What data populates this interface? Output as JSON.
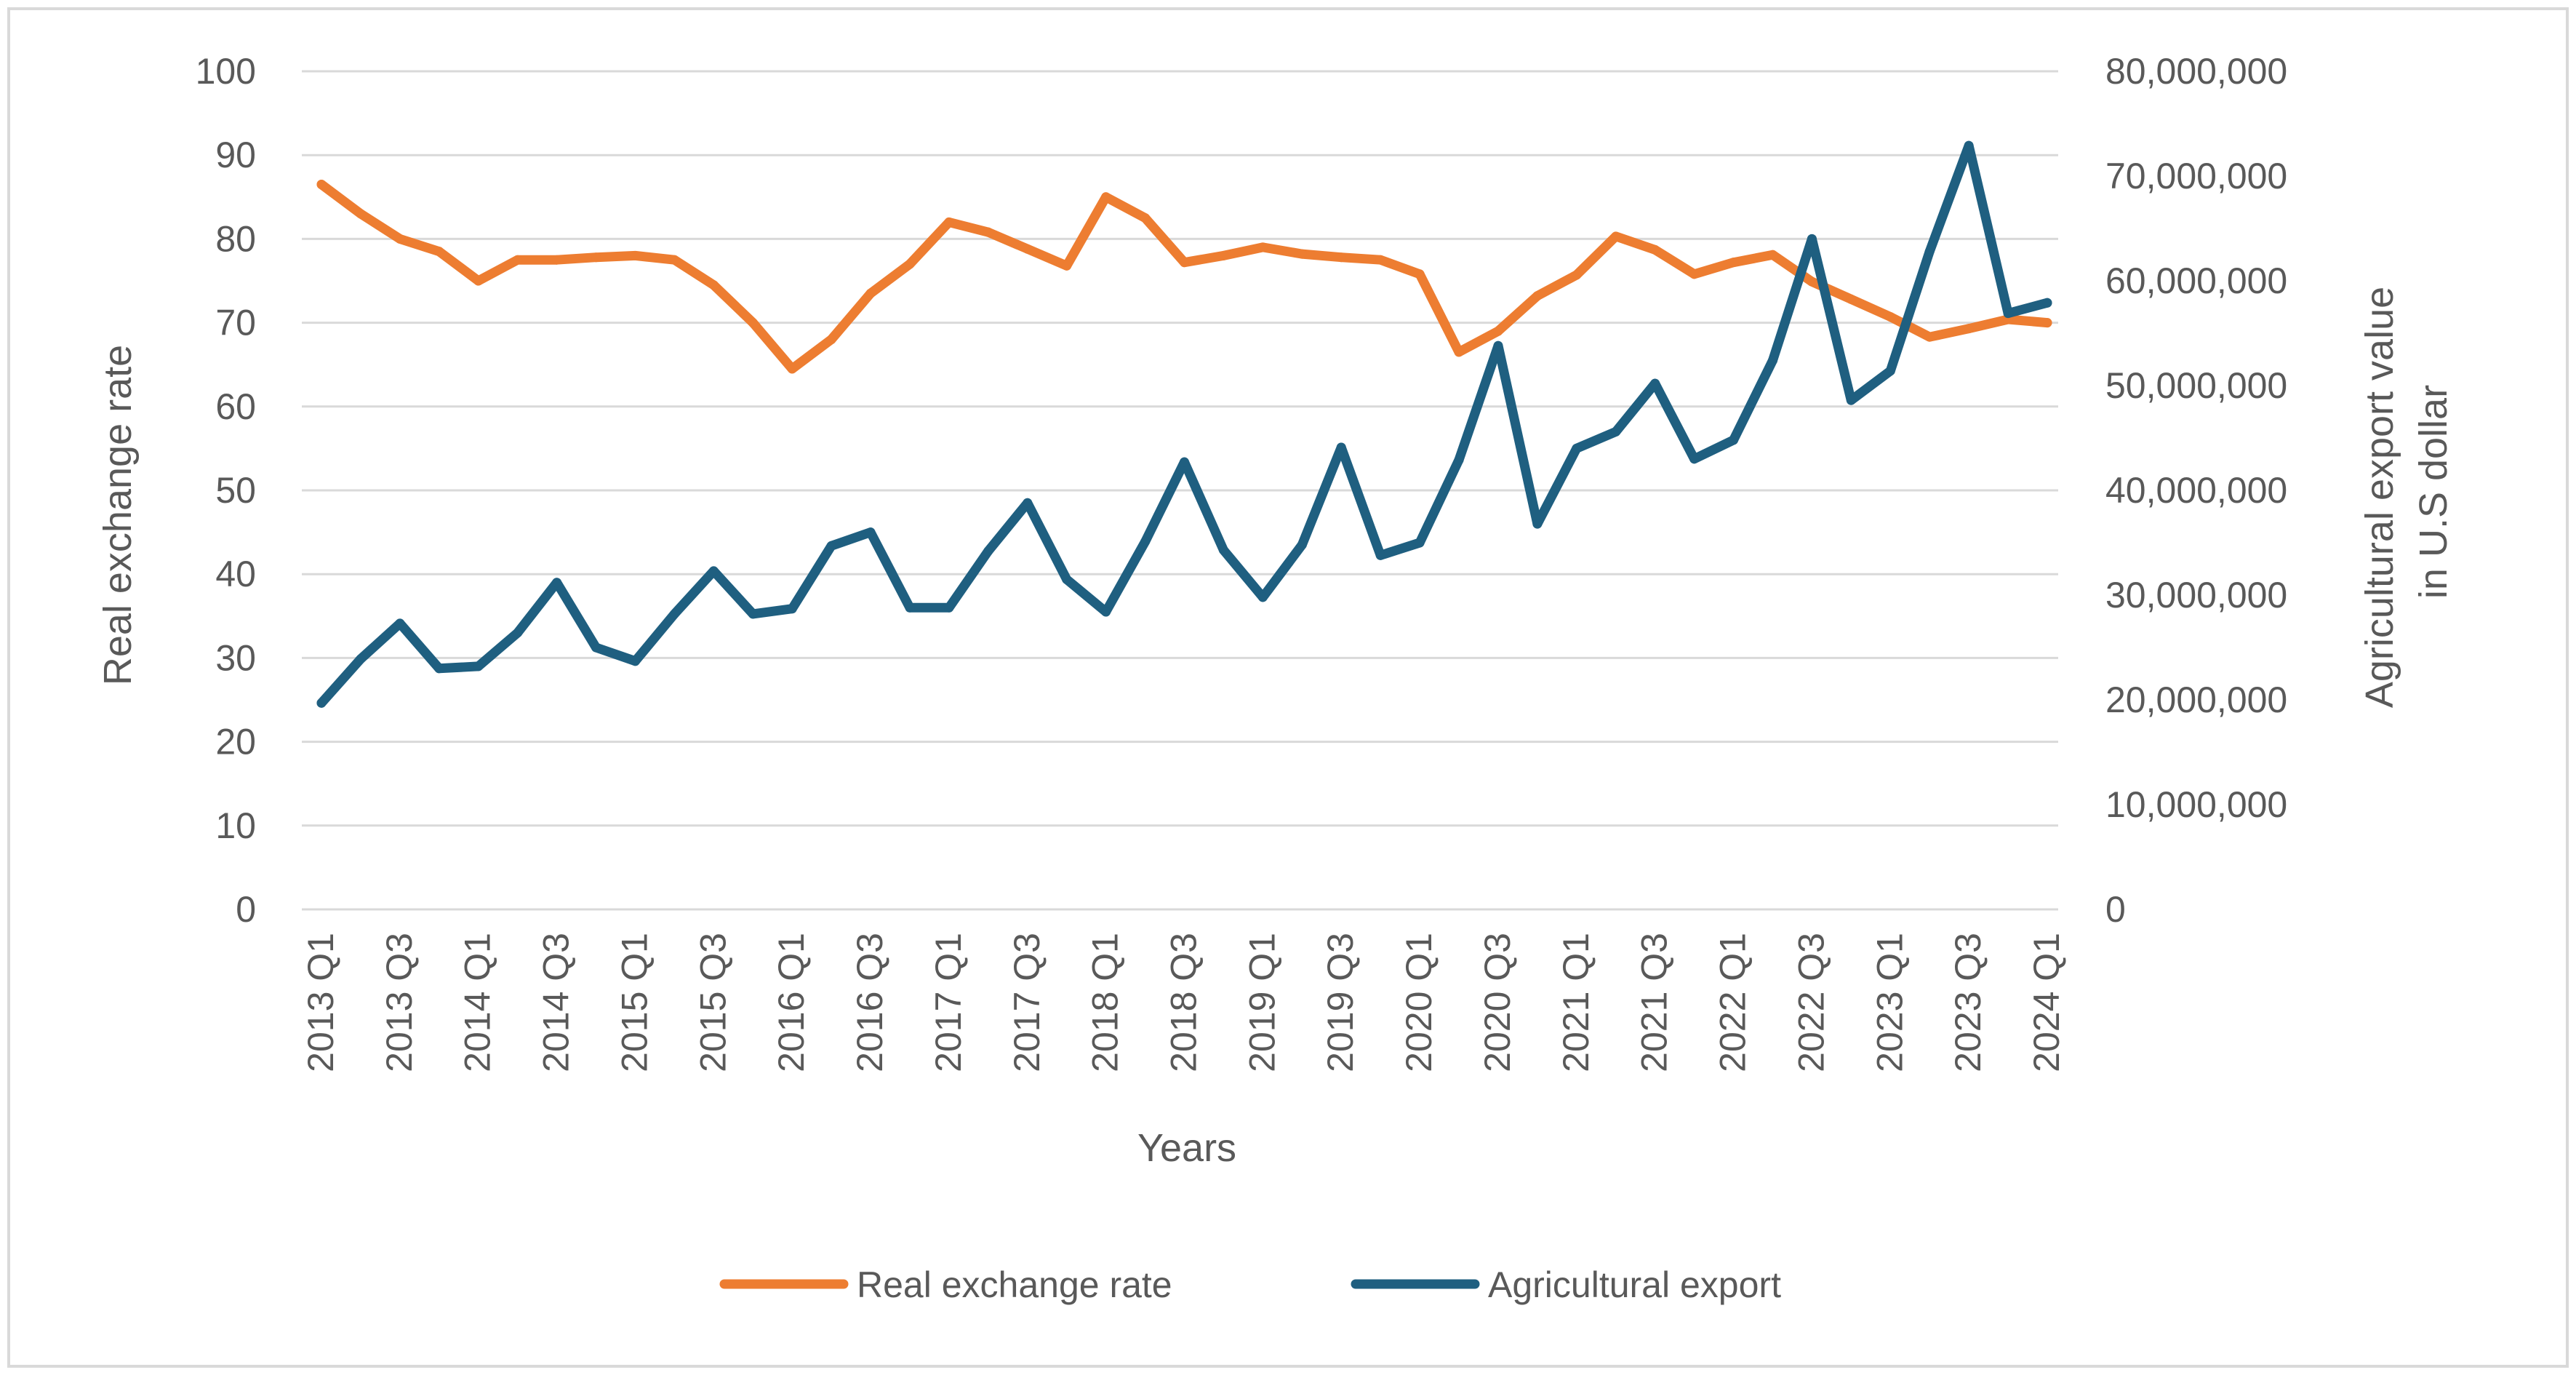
{
  "chart_data": {
    "type": "line",
    "title": "",
    "xlabel": "Years",
    "ylabel_left": "Real exchange rate",
    "ylabel_right_lines": [
      "Agricultural  export value",
      "in U.S dollar"
    ],
    "ylim_left": [
      0,
      100
    ],
    "ylim_right": [
      0,
      80000000
    ],
    "yticks_left": [
      "0",
      "10",
      "20",
      "30",
      "40",
      "50",
      "60",
      "70",
      "80",
      "90",
      "100"
    ],
    "yticks_right": [
      "0",
      "10,000,000",
      "20,000,000",
      "30,000,000",
      "40,000,000",
      "50,000,000",
      "60,000,000",
      "70,000,000",
      "80,000,000"
    ],
    "grid": true,
    "legend_position": "bottom",
    "x": [
      "2013 Q1",
      "2013 Q2",
      "2013 Q3",
      "2013 Q4",
      "2014 Q1",
      "2014 Q2",
      "2014 Q3",
      "2014 Q4",
      "2015 Q1",
      "2015 Q2",
      "2015 Q3",
      "2015 Q4",
      "2016 Q1",
      "2016 Q2",
      "2016 Q3",
      "2016 Q4",
      "2017 Q1",
      "2017 Q2",
      "2017 Q3",
      "2017 Q4",
      "2018 Q1",
      "2018 Q2",
      "2018 Q3",
      "2018 Q4",
      "2019 Q1",
      "2019 Q2",
      "2019 Q3",
      "2019 Q4",
      "2020 Q1",
      "2020 Q2",
      "2020 Q3",
      "2020 Q4",
      "2021 Q1",
      "2021 Q2",
      "2021 Q3",
      "2021 Q4",
      "2022 Q1",
      "2022 Q2",
      "2022 Q3",
      "2022 Q4",
      "2023 Q1",
      "2023 Q2",
      "2023 Q3",
      "2023 Q4",
      "2024 Q1"
    ],
    "x_tick_labels": [
      "2013 Q1",
      "2013 Q3",
      "2014 Q1",
      "2014 Q3",
      "2015 Q1",
      "2015 Q3",
      "2016 Q1",
      "2016 Q3",
      "2017 Q1",
      "2017 Q3",
      "2018 Q1",
      "2018 Q3",
      "2019 Q1",
      "2019 Q3",
      "2020 Q1",
      "2020 Q3",
      "2021 Q1",
      "2021 Q3",
      "2022 Q1",
      "2022 Q3",
      "2023 Q1",
      "2023 Q3",
      "2024 Q1"
    ],
    "series": [
      {
        "name": "Real exchange rate",
        "axis": "left",
        "color": "#ED7D31",
        "values": [
          86.5,
          83.0,
          80.0,
          78.5,
          75.0,
          77.5,
          77.5,
          77.8,
          78.0,
          77.5,
          74.5,
          70.0,
          64.5,
          68.0,
          73.5,
          77.0,
          82.0,
          80.8,
          78.8,
          76.8,
          85.0,
          82.5,
          77.2,
          78.0,
          79.0,
          78.2,
          77.8,
          77.5,
          75.8,
          66.5,
          69.0,
          73.2,
          75.7,
          80.3,
          78.7,
          75.8,
          77.2,
          78.1,
          74.9,
          72.8,
          70.7,
          68.3,
          69.3,
          70.4,
          70.0
        ]
      },
      {
        "name": "Agricultural export",
        "axis": "right",
        "color": "#1F5F80",
        "values": [
          19700000,
          23900000,
          27300000,
          23000000,
          23200000,
          26400000,
          31200000,
          25000000,
          23700000,
          28200000,
          32300000,
          28200000,
          28700000,
          34700000,
          36000000,
          28800000,
          28800000,
          34200000,
          38800000,
          31500000,
          28400000,
          35100000,
          42700000,
          34300000,
          29800000,
          34800000,
          44100000,
          33800000,
          35000000,
          42900000,
          53800000,
          36800000,
          44000000,
          45600000,
          50200000,
          43000000,
          44800000,
          52400000,
          64000000,
          48600000,
          51400000,
          62800000,
          72900000,
          56900000,
          57900000
        ]
      }
    ]
  }
}
